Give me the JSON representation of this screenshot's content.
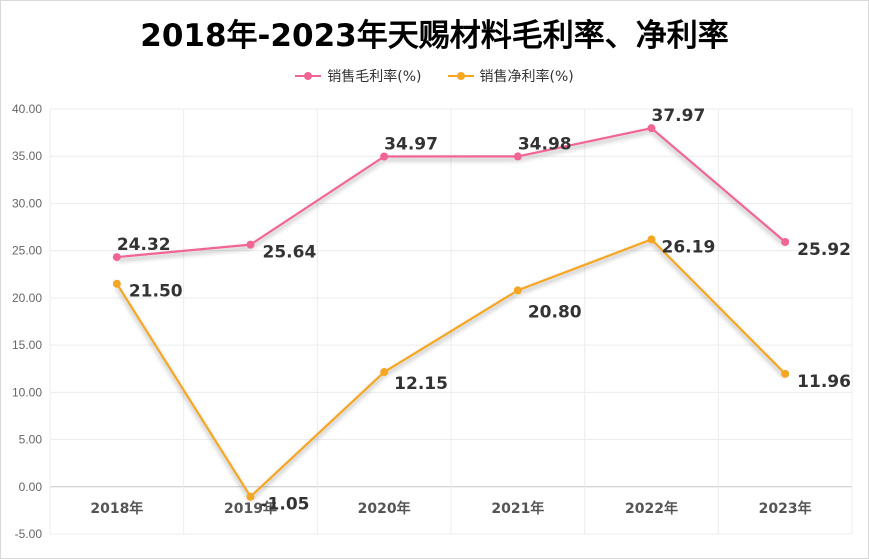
{
  "chart_data": {
    "type": "line",
    "title": "2018年-2023年天赐材料毛利率、净利率",
    "categories": [
      "2018年",
      "2019年",
      "2020年",
      "2021年",
      "2022年",
      "2023年"
    ],
    "series": [
      {
        "name": "销售毛利率(%)",
        "color": "#f06595",
        "values": [
          24.32,
          25.64,
          34.97,
          34.98,
          37.97,
          25.92
        ],
        "labels": [
          "24.32",
          "25.64",
          "34.97",
          "34.98",
          "37.97",
          "25.92"
        ]
      },
      {
        "name": "销售净利率(%)",
        "color": "#f5a623",
        "values": [
          21.5,
          -1.05,
          12.15,
          20.8,
          26.19,
          11.96
        ],
        "labels": [
          "21.50",
          "-1.05",
          "12.15",
          "20.80",
          "26.19",
          "11.96"
        ]
      }
    ],
    "ylim": [
      -5,
      40
    ],
    "yticks": [
      "-5.00",
      "0.00",
      "5.00",
      "10.00",
      "15.00",
      "20.00",
      "25.00",
      "30.00",
      "35.00",
      "40.00"
    ],
    "grid": true,
    "legend_position": "top-center"
  }
}
